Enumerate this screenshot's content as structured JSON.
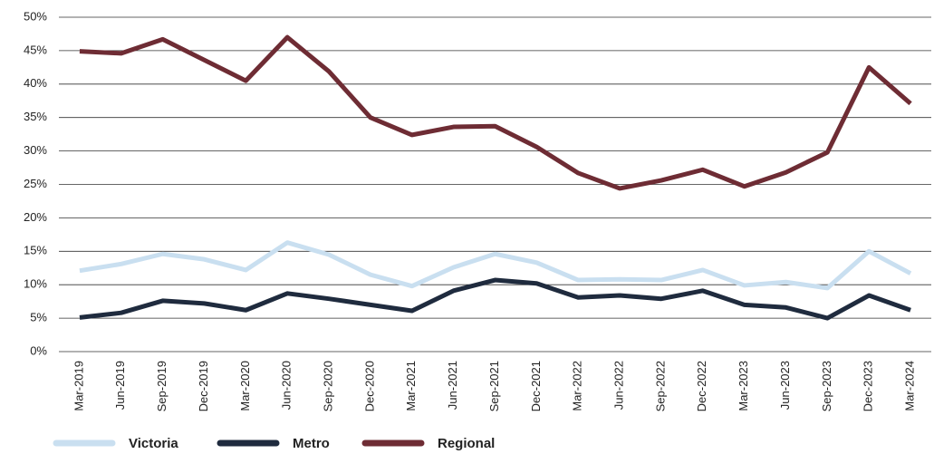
{
  "chart_data": {
    "type": "line",
    "categories": [
      "Mar-2019",
      "Jun-2019",
      "Sep-2019",
      "Dec-2019",
      "Mar-2020",
      "Jun-2020",
      "Sep-2020",
      "Dec-2020",
      "Mar-2021",
      "Jun-2021",
      "Sep-2021",
      "Dec-2021",
      "Mar-2022",
      "Jun-2022",
      "Sep-2022",
      "Dec-2022",
      "Mar-2023",
      "Jun-2023",
      "Sep-2023",
      "Dec-2023",
      "Mar-2024"
    ],
    "series": [
      {
        "name": "Victoria",
        "color": "#c9dff0",
        "values": [
          12.1,
          13.1,
          14.6,
          13.8,
          12.2,
          16.3,
          14.5,
          11.5,
          9.8,
          12.6,
          14.6,
          13.3,
          10.7,
          10.8,
          10.7,
          12.2,
          9.9,
          10.4,
          9.5,
          15.0,
          11.7
        ]
      },
      {
        "name": "Metro",
        "color": "#1f2b3e",
        "values": [
          5.1,
          5.8,
          7.6,
          7.2,
          6.2,
          8.7,
          7.9,
          7.0,
          6.1,
          9.1,
          10.7,
          10.2,
          8.1,
          8.4,
          7.9,
          9.1,
          7.0,
          6.6,
          5.0,
          8.4,
          6.2
        ]
      },
      {
        "name": "Regional",
        "color": "#6e2c34",
        "values": [
          44.9,
          44.6,
          46.7,
          43.6,
          40.5,
          47.0,
          41.9,
          35.0,
          32.4,
          33.6,
          33.7,
          30.6,
          26.7,
          24.4,
          25.6,
          27.2,
          24.7,
          26.8,
          29.8,
          42.5,
          37.1
        ]
      }
    ],
    "ylim": [
      0,
      50
    ],
    "yticks": [
      {
        "value": 0,
        "label": "0%"
      },
      {
        "value": 5,
        "label": "5%"
      },
      {
        "value": 10,
        "label": "10%"
      },
      {
        "value": 15,
        "label": "15%"
      },
      {
        "value": 20,
        "label": "20%"
      },
      {
        "value": 25,
        "label": "25%"
      },
      {
        "value": 30,
        "label": "30%"
      },
      {
        "value": 35,
        "label": "35%"
      },
      {
        "value": 40,
        "label": "40%"
      },
      {
        "value": 45,
        "label": "45%"
      },
      {
        "value": 50,
        "label": "50%"
      }
    ],
    "grid": true,
    "legend": "bottom"
  }
}
